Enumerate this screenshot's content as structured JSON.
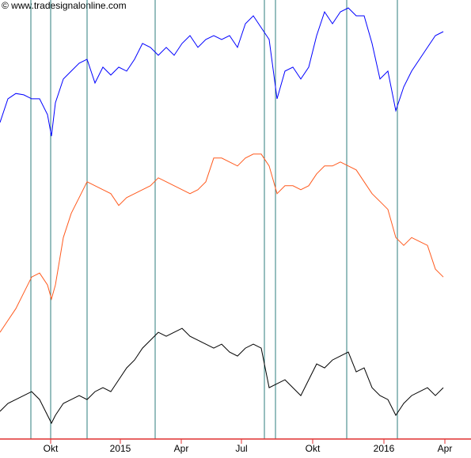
{
  "chart_data": {
    "type": "line",
    "watermark": "© www.tradesignalonline.com",
    "x": [
      0,
      1,
      2,
      3,
      4,
      5,
      6,
      6.5,
      7,
      8,
      9,
      10,
      11,
      12,
      13,
      14,
      15,
      16,
      17,
      18,
      19,
      20,
      21,
      22,
      23,
      24,
      25,
      26,
      27,
      28,
      29,
      30,
      31,
      32,
      33,
      34,
      35,
      36,
      37,
      38,
      39,
      40,
      41,
      42,
      43,
      44,
      45,
      46,
      47,
      48,
      49,
      50,
      51,
      52,
      53,
      54,
      55,
      56
    ],
    "series": [
      {
        "color": "#0000ff",
        "values": [
          72.1,
          77.5,
          78.7,
          78.4,
          77.5,
          77.5,
          73.9,
          69.0,
          76.6,
          82.0,
          83.8,
          85.6,
          86.5,
          81.1,
          84.7,
          82.9,
          84.7,
          83.8,
          86.5,
          90.1,
          89.2,
          87.4,
          89.2,
          87.4,
          90.1,
          91.9,
          89.2,
          91.0,
          91.9,
          91.0,
          91.9,
          89.2,
          94.6,
          96.4,
          93.7,
          91.0,
          77.5,
          83.8,
          84.7,
          82.0,
          84.7,
          91.9,
          97.3,
          94.6,
          97.3,
          98.2,
          96.4,
          96.4,
          90.1,
          82.0,
          83.8,
          74.8,
          80.2,
          83.8,
          86.5,
          89.2,
          91.9,
          92.8
        ]
      },
      {
        "color": "#ff5a1e",
        "values": [
          24.3,
          27.0,
          29.7,
          33.3,
          36.9,
          37.8,
          35.1,
          31.9,
          35.1,
          45.9,
          51.4,
          55.0,
          58.6,
          57.7,
          56.8,
          55.9,
          53.2,
          55.0,
          55.9,
          56.8,
          57.7,
          59.5,
          58.6,
          57.7,
          56.8,
          55.9,
          56.8,
          58.6,
          64.0,
          64.0,
          63.1,
          62.2,
          64.0,
          64.9,
          64.9,
          62.2,
          55.9,
          57.7,
          57.7,
          56.8,
          57.7,
          60.4,
          62.2,
          62.2,
          63.1,
          62.2,
          61.3,
          58.6,
          55.9,
          54.1,
          52.3,
          45.9,
          44.1,
          45.9,
          45.0,
          44.1,
          38.7,
          36.9
        ]
      },
      {
        "color": "#000000",
        "values": [
          6.3,
          8.1,
          9.0,
          9.9,
          10.8,
          9.0,
          5.4,
          3.6,
          5.4,
          8.1,
          9.0,
          9.9,
          9.0,
          10.8,
          11.7,
          10.8,
          13.5,
          16.2,
          18.0,
          20.7,
          22.5,
          24.3,
          23.4,
          24.3,
          25.2,
          23.4,
          22.5,
          21.6,
          20.7,
          21.6,
          19.8,
          18.9,
          20.7,
          21.6,
          20.7,
          11.7,
          12.6,
          13.5,
          11.7,
          9.9,
          13.5,
          17.1,
          16.2,
          18.0,
          18.9,
          19.8,
          15.3,
          16.2,
          11.7,
          9.9,
          9.0,
          5.4,
          8.1,
          9.9,
          10.8,
          11.7,
          9.9,
          11.7
        ]
      }
    ],
    "vlines": [
      3.9,
      6.4,
      11.0,
      19.6,
      33.4,
      34.8,
      43.8,
      50.2
    ],
    "vline_color": "#2e7d7d",
    "axis_color": "#e03030",
    "xlim": [
      0,
      59.5
    ],
    "ylim": [
      0,
      100
    ],
    "xticks": [
      {
        "value": 6.4,
        "label": "Okt"
      },
      {
        "value": 15.2,
        "label": "2015"
      },
      {
        "value": 22.9,
        "label": "Apr"
      },
      {
        "value": 30.5,
        "label": "Jul"
      },
      {
        "value": 39.5,
        "label": "Okt"
      },
      {
        "value": 48.5,
        "label": "2016"
      },
      {
        "value": 56.2,
        "label": "Apr"
      }
    ]
  }
}
